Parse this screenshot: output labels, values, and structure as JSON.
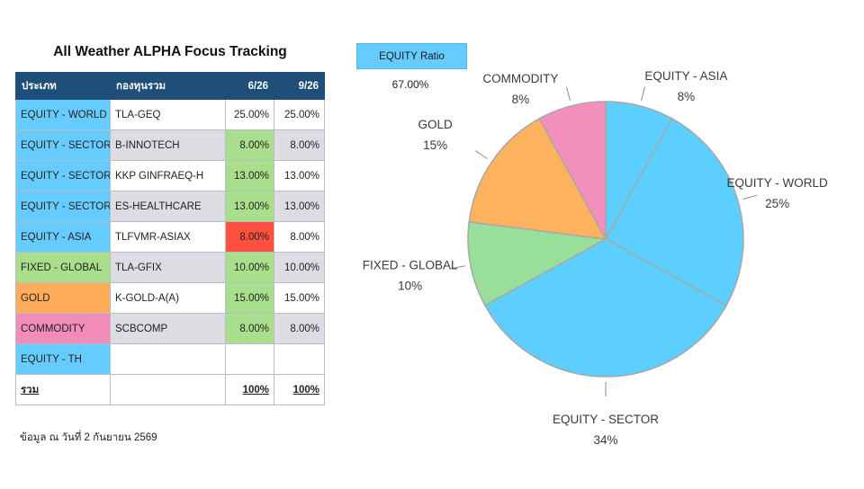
{
  "title": "All Weather ALPHA Focus Tracking",
  "table": {
    "headers": [
      "ประเภท",
      "กองทุนรวม",
      "6/26",
      "9/26"
    ],
    "rows": [
      {
        "category": "EQUITY - WORLD",
        "fund": "TLA-GEQ",
        "jun": "25.00%",
        "sep": "25.00%",
        "cat_color": "#66ccff",
        "jun_color": "#ffffff"
      },
      {
        "category": "EQUITY - SECTOR",
        "fund": "B-INNOTECH",
        "jun": "8.00%",
        "sep": "8.00%",
        "cat_color": "#66ccff",
        "jun_color": "#a9df8c"
      },
      {
        "category": "EQUITY - SECTOR",
        "fund": "KKP GINFRAEQ-H",
        "jun": "13.00%",
        "sep": "13.00%",
        "cat_color": "#66ccff",
        "jun_color": "#a9df8c"
      },
      {
        "category": "EQUITY - SECTOR",
        "fund": "ES-HEALTHCARE",
        "jun": "13.00%",
        "sep": "13.00%",
        "cat_color": "#66ccff",
        "jun_color": "#a9df8c"
      },
      {
        "category": "EQUITY - ASIA",
        "fund": "TLFVMR-ASIAX",
        "jun": "8.00%",
        "sep": "8.00%",
        "cat_color": "#66ccff",
        "jun_color": "#ff5040"
      },
      {
        "category": "FIXED - GLOBAL",
        "fund": "TLA-GFIX",
        "jun": "10.00%",
        "sep": "10.00%",
        "cat_color": "#a9df8c",
        "jun_color": "#a9df8c"
      },
      {
        "category": "GOLD",
        "fund": "K-GOLD-A(A)",
        "jun": "15.00%",
        "sep": "15.00%",
        "cat_color": "#ffad5a",
        "jun_color": "#a9df8c"
      },
      {
        "category": "COMMODITY",
        "fund": "SCBCOMP",
        "jun": "8.00%",
        "sep": "8.00%",
        "cat_color": "#f28cb8",
        "jun_color": "#a9df8c"
      },
      {
        "category": "EQUITY - TH",
        "fund": "",
        "jun": "",
        "sep": "",
        "cat_color": "#66ccff",
        "jun_color": "#ffffff"
      }
    ],
    "total": {
      "label": "รวม",
      "jun": "100%",
      "sep": "100%"
    }
  },
  "footnote": "ข้อมูล ณ วันที่ 2 กันยายน 2569",
  "equity_ratio": {
    "label": "EQUITY Ratio",
    "value": "67.00%"
  },
  "chart_data": {
    "type": "pie",
    "title": "",
    "start": "12 o'clock",
    "direction": "clockwise",
    "slices": [
      {
        "name": "EQUITY - ASIA",
        "value": 8,
        "label": "8%",
        "color": "#5ccfff"
      },
      {
        "name": "EQUITY - WORLD",
        "value": 25,
        "label": "25%",
        "color": "#5ccfff"
      },
      {
        "name": "EQUITY - SECTOR",
        "value": 34,
        "label": "34%",
        "color": "#5ccfff"
      },
      {
        "name": "FIXED - GLOBAL",
        "value": 10,
        "label": "10%",
        "color": "#97df9a"
      },
      {
        "name": "GOLD",
        "value": 15,
        "label": "15%",
        "color": "#ffb25e"
      },
      {
        "name": "COMMODITY",
        "value": 8,
        "label": "8%",
        "color": "#f38fbd"
      }
    ]
  }
}
